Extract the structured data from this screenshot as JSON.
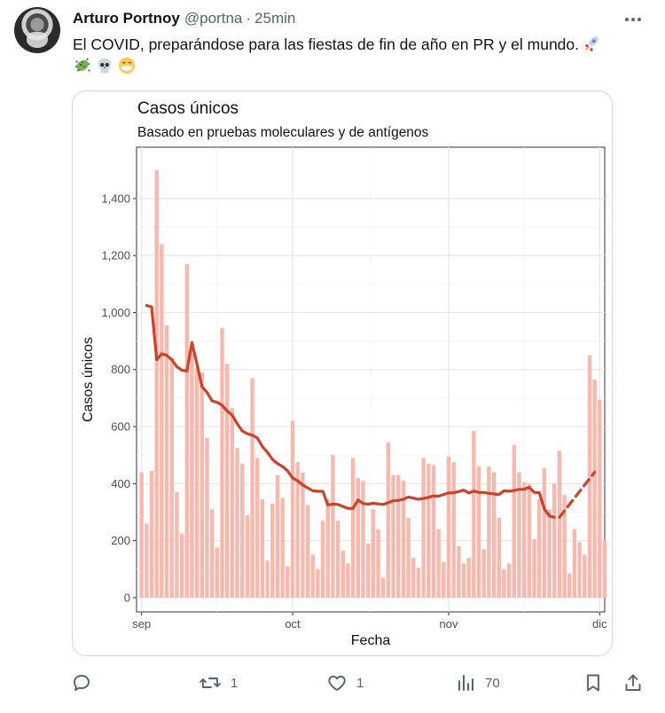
{
  "tweet": {
    "author_name": "Arturo Portnoy",
    "handle": "@portna",
    "separator": "·",
    "time": "25min",
    "text": "El COVID, preparándose para las fiestas de fin de año en PR y el mundo.",
    "emojis": [
      "rocket-emoji",
      "microbe-emoji",
      "skull-emoji",
      "mask-face-emoji"
    ]
  },
  "actions": {
    "reply_count": "",
    "retweet_count": "1",
    "like_count": "1",
    "views_count": "70"
  },
  "colors": {
    "bar": "#f7b8ae",
    "line": "#c9432c",
    "text_secondary": "#536471"
  },
  "chart_data": {
    "type": "bar",
    "title": "Casos únicos",
    "subtitle": "Basado en pruebas moleculares y de antígenos",
    "xlabel": "Fecha",
    "ylabel": "Casos únicos",
    "ylim": [
      -50,
      1580
    ],
    "yticks": [
      0,
      200,
      400,
      600,
      800,
      1000,
      1200,
      1400
    ],
    "ytick_labels": [
      "0",
      "200",
      "400",
      "600",
      "800",
      "1,000",
      "1,200",
      "1,400"
    ],
    "xlim": [
      "2021-08-31",
      "2021-12-02"
    ],
    "xticks": [
      "2021-09-01",
      "2021-10-01",
      "2021-11-01",
      "2021-12-01"
    ],
    "xtick_labels": [
      "sep",
      "oct",
      "nov",
      "dic"
    ],
    "grid": true,
    "legend": "none",
    "bars": {
      "start_date": "2021-09-01",
      "values": [
        440,
        260,
        445,
        1500,
        1240,
        955,
        840,
        370,
        225,
        1170,
        870,
        805,
        790,
        560,
        310,
        175,
        945,
        820,
        665,
        525,
        470,
        290,
        770,
        490,
        345,
        130,
        330,
        430,
        350,
        110,
        620,
        475,
        440,
        325,
        150,
        100,
        270,
        345,
        500,
        270,
        165,
        120,
        490,
        420,
        410,
        190,
        310,
        240,
        70,
        545,
        430,
        430,
        410,
        280,
        140,
        105,
        490,
        470,
        465,
        240,
        125,
        495,
        475,
        180,
        120,
        140,
        585,
        460,
        170,
        460,
        440,
        280,
        100,
        120,
        535,
        440,
        405,
        400,
        205,
        345,
        455,
        310,
        400,
        515,
        360,
        85,
        240,
        195,
        150,
        850,
        765,
        695,
        200
      ]
    },
    "moving_average": {
      "start_date": "2021-09-02",
      "values": [
        1025,
        1020,
        835,
        855,
        850,
        835,
        810,
        798,
        795,
        895,
        820,
        740,
        720,
        690,
        685,
        675,
        655,
        640,
        610,
        585,
        575,
        570,
        560,
        530,
        510,
        485,
        470,
        460,
        445,
        420,
        410,
        395,
        385,
        375,
        373,
        373,
        325,
        328,
        327,
        320,
        313,
        313,
        343,
        330,
        328,
        331,
        329,
        327,
        333,
        340,
        341,
        345,
        353,
        349,
        345,
        348,
        352,
        357,
        356,
        362,
        367,
        368,
        372,
        377,
        367,
        374,
        369,
        369,
        366,
        364,
        362,
        375,
        373,
        376,
        380,
        380,
        387,
        369,
        368,
        311,
        287,
        282
      ]
    },
    "projection": {
      "values": [
        {
          "date": "2021-11-23",
          "value": 282
        },
        {
          "date": "2021-11-30",
          "value": 440
        }
      ]
    }
  }
}
